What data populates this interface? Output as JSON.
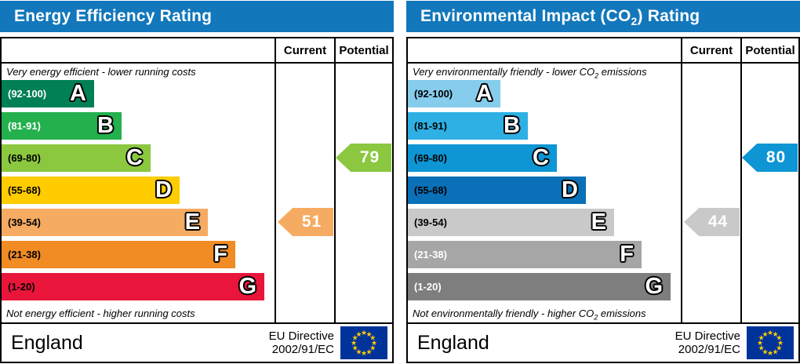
{
  "header_bg": "#1277bb",
  "flag": {
    "bg": "#003399",
    "star": "#ffcc00"
  },
  "chart_data": [
    {
      "type": "bar",
      "title": "Energy Efficiency Rating",
      "categories": [
        "A (92-100)",
        "B (81-91)",
        "C (69-80)",
        "D (55-68)",
        "E (39-54)",
        "F (21-38)",
        "G (1-20)"
      ],
      "series": [
        {
          "name": "Current",
          "values": [
            null,
            null,
            null,
            null,
            51,
            null,
            null
          ]
        },
        {
          "name": "Potential",
          "values": [
            null,
            null,
            79,
            null,
            null,
            null,
            null
          ]
        }
      ],
      "annotations": [
        "Very energy efficient - lower running costs",
        "Not energy efficient - higher running costs"
      ],
      "legend_position": "top-right-columns"
    },
    {
      "type": "bar",
      "title": "Environmental Impact (CO2) Rating",
      "categories": [
        "A (92-100)",
        "B (81-91)",
        "C (69-80)",
        "D (55-68)",
        "E (39-54)",
        "F (21-38)",
        "G (1-20)"
      ],
      "series": [
        {
          "name": "Current",
          "values": [
            null,
            null,
            null,
            null,
            44,
            null,
            null
          ]
        },
        {
          "name": "Potential",
          "values": [
            null,
            null,
            80,
            null,
            null,
            null,
            null
          ]
        }
      ],
      "annotations": [
        "Very environmentally friendly - lower CO2 emissions",
        "Not environmentally friendly - higher CO2 emissions"
      ],
      "legend_position": "top-right-columns"
    }
  ],
  "panels": [
    {
      "title": {
        "pre": "Energy Efficiency Rating",
        "sub": "",
        "post": ""
      },
      "columns": [
        "Current",
        "Potential"
      ],
      "top_note": {
        "pre": "Very energy efficient - lower running costs",
        "sub": "",
        "post": ""
      },
      "bottom_note": {
        "pre": "Not energy efficient - higher running costs",
        "sub": "",
        "post": ""
      },
      "bands": [
        {
          "letter": "A",
          "range": "(92-100)",
          "color": "#008054",
          "text_color": "#ffffff"
        },
        {
          "letter": "B",
          "range": "(81-91)",
          "color": "#23b04d",
          "text_color": "#ffffff"
        },
        {
          "letter": "C",
          "range": "(69-80)",
          "color": "#8bc83f",
          "text_color": "#000000"
        },
        {
          "letter": "D",
          "range": "(55-68)",
          "color": "#ffcc00",
          "text_color": "#000000"
        },
        {
          "letter": "E",
          "range": "(39-54)",
          "color": "#f6ab62",
          "text_color": "#000000"
        },
        {
          "letter": "F",
          "range": "(21-38)",
          "color": "#f18b24",
          "text_color": "#000000"
        },
        {
          "letter": "G",
          "range": "(1-20)",
          "color": "#e9153b",
          "text_color": "#000000"
        }
      ],
      "current": {
        "value": "51",
        "band": "E",
        "color": "#f6ab62"
      },
      "potential": {
        "value": "79",
        "band": "C",
        "color": "#8bc83f"
      },
      "footer": {
        "country": "England",
        "directive": "EU Directive\n2002/91/EC"
      }
    },
    {
      "title": {
        "pre": "Environmental Impact (CO",
        "sub": "2",
        "post": ") Rating"
      },
      "columns": [
        "Current",
        "Potential"
      ],
      "top_note": {
        "pre": "Very environmentally friendly - lower CO",
        "sub": "2",
        "post": " emissions"
      },
      "bottom_note": {
        "pre": "Not environmentally friendly - higher CO",
        "sub": "2",
        "post": " emissions"
      },
      "bands": [
        {
          "letter": "A",
          "range": "(92-100)",
          "color": "#86ccec",
          "text_color": "#000000"
        },
        {
          "letter": "B",
          "range": "(81-91)",
          "color": "#2eb0e4",
          "text_color": "#000000"
        },
        {
          "letter": "C",
          "range": "(69-80)",
          "color": "#0d95d4",
          "text_color": "#000000"
        },
        {
          "letter": "D",
          "range": "(55-68)",
          "color": "#0a70b8",
          "text_color": "#000000"
        },
        {
          "letter": "E",
          "range": "(39-54)",
          "color": "#c9c9c9",
          "text_color": "#000000"
        },
        {
          "letter": "F",
          "range": "(21-38)",
          "color": "#a6a6a6",
          "text_color": "#ffffff"
        },
        {
          "letter": "G",
          "range": "(1-20)",
          "color": "#7e7e7e",
          "text_color": "#ffffff"
        }
      ],
      "current": {
        "value": "44",
        "band": "E",
        "color": "#c9c9c9"
      },
      "potential": {
        "value": "80",
        "band": "C",
        "color": "#0d95d4"
      },
      "footer": {
        "country": "England",
        "directive": "EU Directive\n2002/91/EC"
      }
    }
  ]
}
